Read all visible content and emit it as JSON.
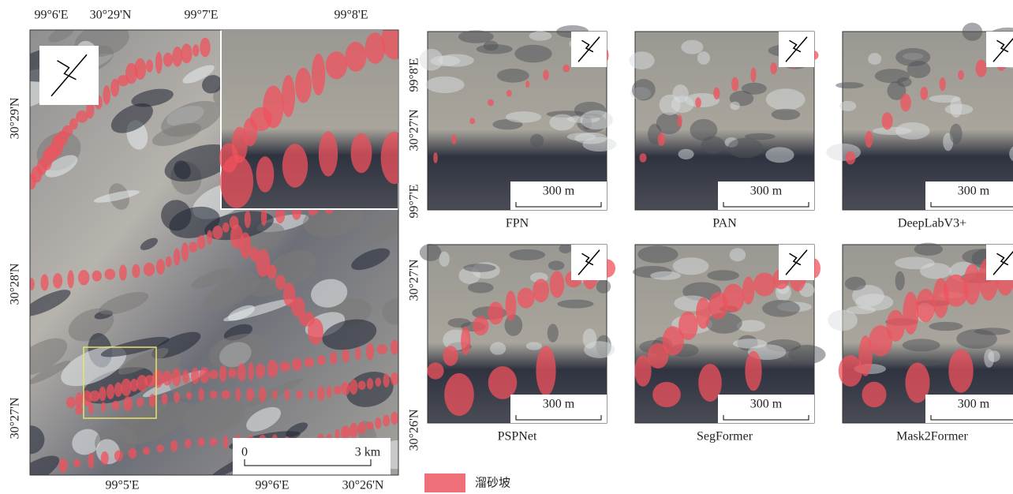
{
  "main_map": {
    "top_labels": [
      "99°6'E",
      "30°29'N",
      "99°7'E",
      "99°8'E"
    ],
    "left_labels": [
      "30°29'N",
      "30°28'N",
      "30°27'N"
    ],
    "bottom_labels": [
      "99°5'E",
      "99°6'E",
      "30°26'N"
    ],
    "scale_start": "0",
    "scale_end": "3 km"
  },
  "panel_side_labels": [
    "99°8'E",
    "30°27'N",
    "99°7'E",
    "30°27'N",
    "30°26'N"
  ],
  "panels": [
    {
      "name": "FPN",
      "scale": "300 m"
    },
    {
      "name": "PAN",
      "scale": "300 m"
    },
    {
      "name": "DeepLabV3+",
      "scale": "300 m"
    },
    {
      "name": "PSPNet",
      "scale": "300 m"
    },
    {
      "name": "SegFormer",
      "scale": "300 m"
    },
    {
      "name": "Mask2Former",
      "scale": "300 m"
    }
  ],
  "legend": "溜砂坡"
}
